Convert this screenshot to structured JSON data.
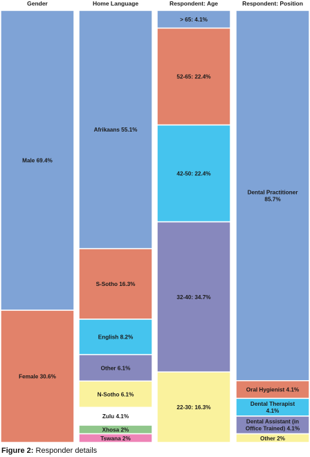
{
  "chart_data": {
    "type": "stacked-bar",
    "caption_prefix": "Figure 2:",
    "caption_text": " Responder details",
    "colors": {
      "blue": "#7fa3d6",
      "orange": "#e2826a",
      "cyan": "#45c4ee",
      "purple": "#8788bd",
      "yellow": "#faf29d",
      "white": "#ffffff",
      "green": "#90c68b",
      "pink": "#ee84b7"
    },
    "columns": [
      {
        "title": "Gender",
        "segments": [
          {
            "label_lines": [
              "Male 69.4%"
            ],
            "value": 69.4,
            "color": "blue"
          },
          {
            "label_lines": [
              "Female 30.6%"
            ],
            "value": 30.6,
            "color": "orange"
          }
        ]
      },
      {
        "title": "Home Language",
        "segments": [
          {
            "label_lines": [
              "Afrikaans 55.1%"
            ],
            "value": 55.1,
            "color": "blue"
          },
          {
            "label_lines": [
              "S-Sotho 16.3%"
            ],
            "value": 16.3,
            "color": "orange"
          },
          {
            "label_lines": [
              "English 8.2%"
            ],
            "value": 8.2,
            "color": "cyan"
          },
          {
            "label_lines": [
              "Other 6.1%"
            ],
            "value": 6.1,
            "color": "purple"
          },
          {
            "label_lines": [
              "N-Sotho 6.1%"
            ],
            "value": 6.1,
            "color": "yellow"
          },
          {
            "label_lines": [
              "Zulu 4.1%"
            ],
            "value": 4.1,
            "color": "white"
          },
          {
            "label_lines": [
              "Xhosa 2%"
            ],
            "value": 2,
            "color": "green"
          },
          {
            "label_lines": [
              "Tswana 2%"
            ],
            "value": 2,
            "color": "pink"
          }
        ]
      },
      {
        "title": "Respondent: Age",
        "segments": [
          {
            "label_lines": [
              "> 65: 4.1%"
            ],
            "value": 4.1,
            "color": "blue"
          },
          {
            "label_lines": [
              "52-65: 22.4%"
            ],
            "value": 22.4,
            "color": "orange"
          },
          {
            "label_lines": [
              "42-50: 22.4%"
            ],
            "value": 22.4,
            "color": "cyan"
          },
          {
            "label_lines": [
              "32-40: 34.7%"
            ],
            "value": 34.7,
            "color": "purple"
          },
          {
            "label_lines": [
              "22-30: 16.3%"
            ],
            "value": 16.3,
            "color": "yellow"
          }
        ]
      },
      {
        "title": "Respondent: Position",
        "segments": [
          {
            "label_lines": [
              "Dental Practitioner",
              "85.7%"
            ],
            "value": 85.7,
            "color": "blue"
          },
          {
            "label_lines": [
              "Oral Hygienist 4.1%"
            ],
            "value": 4.1,
            "color": "orange"
          },
          {
            "label_lines": [
              "Dental Therapist",
              "4.1%"
            ],
            "value": 4.1,
            "color": "cyan"
          },
          {
            "label_lines": [
              "Dental Assistant (in",
              "Office Trained) 4.1%"
            ],
            "value": 4.1,
            "color": "purple"
          },
          {
            "label_lines": [
              "Other 2%"
            ],
            "value": 2,
            "color": "yellow"
          }
        ]
      }
    ]
  }
}
